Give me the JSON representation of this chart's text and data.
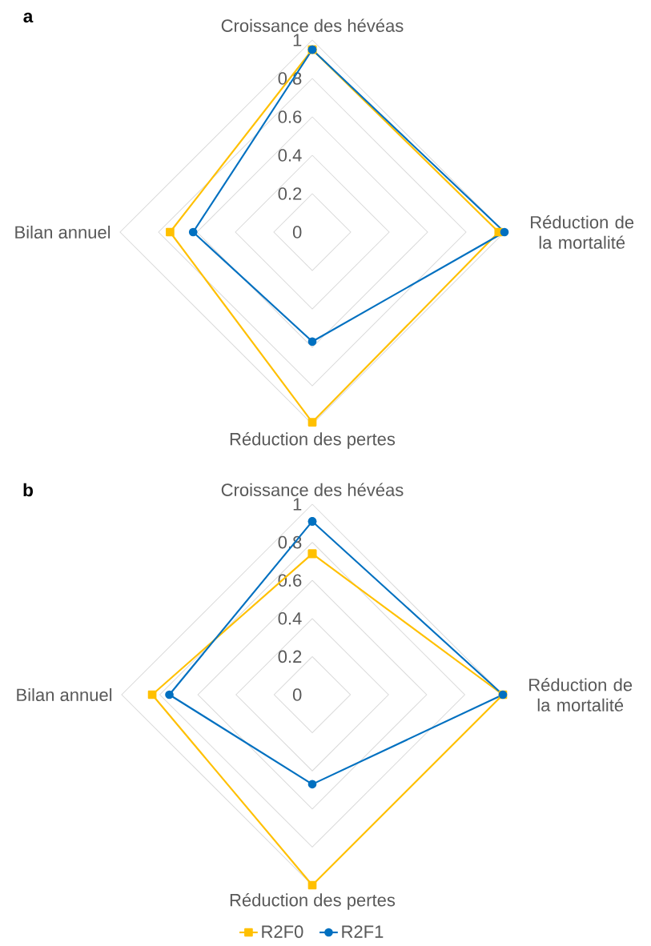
{
  "chart_data": [
    {
      "type": "radar",
      "title": "a",
      "categories": [
        "Croissance des hévéas",
        "Réduction de la mortalité",
        "Réduction des pertes",
        "Bilan annuel"
      ],
      "ylim": [
        0,
        1
      ],
      "yticks": [
        0,
        0.2,
        0.4,
        0.6,
        0.8,
        1
      ],
      "grid": true,
      "legend": false,
      "series": [
        {
          "color": "#ffc000",
          "marker": "square",
          "values": [
            0.95,
            0.97,
            0.99,
            0.74
          ]
        },
        {
          "color": "#0070c0",
          "marker": "circle",
          "values": [
            0.95,
            1.0,
            0.57,
            0.62
          ]
        }
      ]
    },
    {
      "type": "radar",
      "title": "b",
      "categories": [
        "Croissance des hévéas",
        "Réduction de la mortalité",
        "Réduction des pertes",
        "Bilan annuel"
      ],
      "ylim": [
        0,
        1
      ],
      "yticks": [
        0,
        0.2,
        0.4,
        0.6,
        0.8,
        1
      ],
      "grid": true,
      "legend": "bottom",
      "series": [
        {
          "name": "R2F0",
          "color": "#ffc000",
          "marker": "square",
          "values": [
            0.74,
            1.0,
            1.0,
            0.84
          ]
        },
        {
          "name": "R2F1",
          "color": "#0070c0",
          "marker": "circle",
          "values": [
            0.91,
            1.0,
            0.47,
            0.75
          ]
        }
      ]
    }
  ]
}
